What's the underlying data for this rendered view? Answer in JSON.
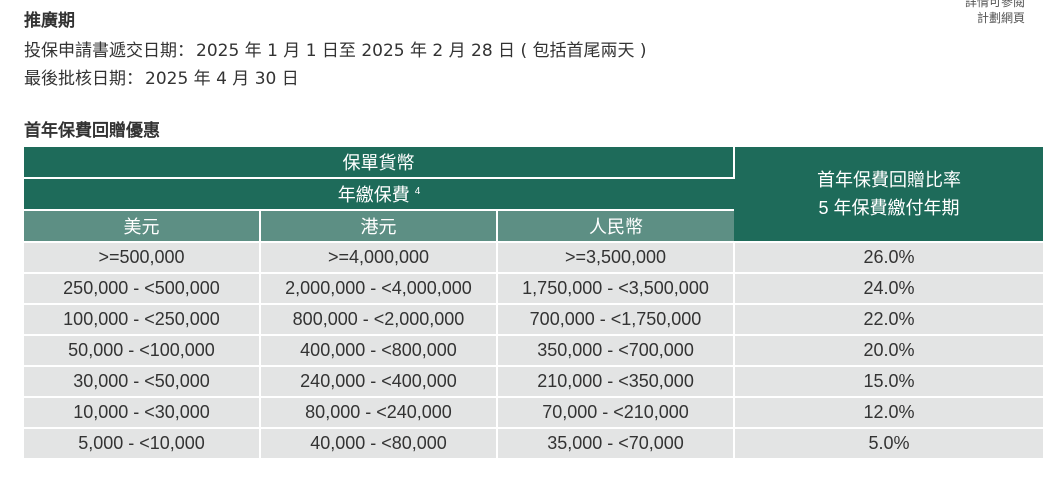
{
  "corner_link": {
    "line1": "詳情可參閱",
    "line2": "計劃網頁"
  },
  "promo": {
    "title": "推廣期",
    "application_label": "投保申請書遞交日期：",
    "application_value": "2025 年 1 月 1 日至 2025 年 2 月 28 日 ( 包括首尾兩天 )",
    "approval_label": "最後批核日期：",
    "approval_value": "2025 年 4 月 30 日"
  },
  "rebate": {
    "section_title": "首年保費回贈優惠",
    "header": {
      "policy_currency": "保單貨幣",
      "annual_premium": "年繳保費",
      "annual_premium_note": "4",
      "rate_line1": "首年保費回贈比率",
      "rate_line2": "5 年保費繳付年期",
      "currencies": [
        "美元",
        "港元",
        "人民幣"
      ]
    },
    "rows": [
      [
        "&gt;=500,000",
        "&gt;=4,000,000",
        "&gt;=3,500,000",
        "26.0%"
      ],
      [
        "250,000 - &lt;500,000",
        "2,000,000 - &lt;4,000,000",
        "1,750,000 - &lt;3,500,000",
        "24.0%"
      ],
      [
        "100,000 - &lt;250,000",
        "800,000 - &lt;2,000,000",
        "700,000 - &lt;1,750,000",
        "22.0%"
      ],
      [
        "50,000 - &lt;100,000",
        "400,000 - &lt;800,000",
        "350,000 - &lt;700,000",
        "20.0%"
      ],
      [
        "30,000 - &lt;50,000",
        "240,000 - &lt;400,000",
        "210,000 - &lt;350,000",
        "15.0%"
      ],
      [
        "10,000 - &lt;30,000",
        "80,000 - &lt;240,000",
        "70,000 - &lt;210,000",
        "12.0%"
      ],
      [
        "5,000 - &lt;10,000",
        "40,000 - &lt;80,000",
        "35,000 - &lt;70,000",
        "5.0%"
      ]
    ]
  },
  "colors": {
    "header_dark": "#1e6b5a",
    "header_light": "#5d8f84",
    "row_background": "#e3e4e4"
  }
}
